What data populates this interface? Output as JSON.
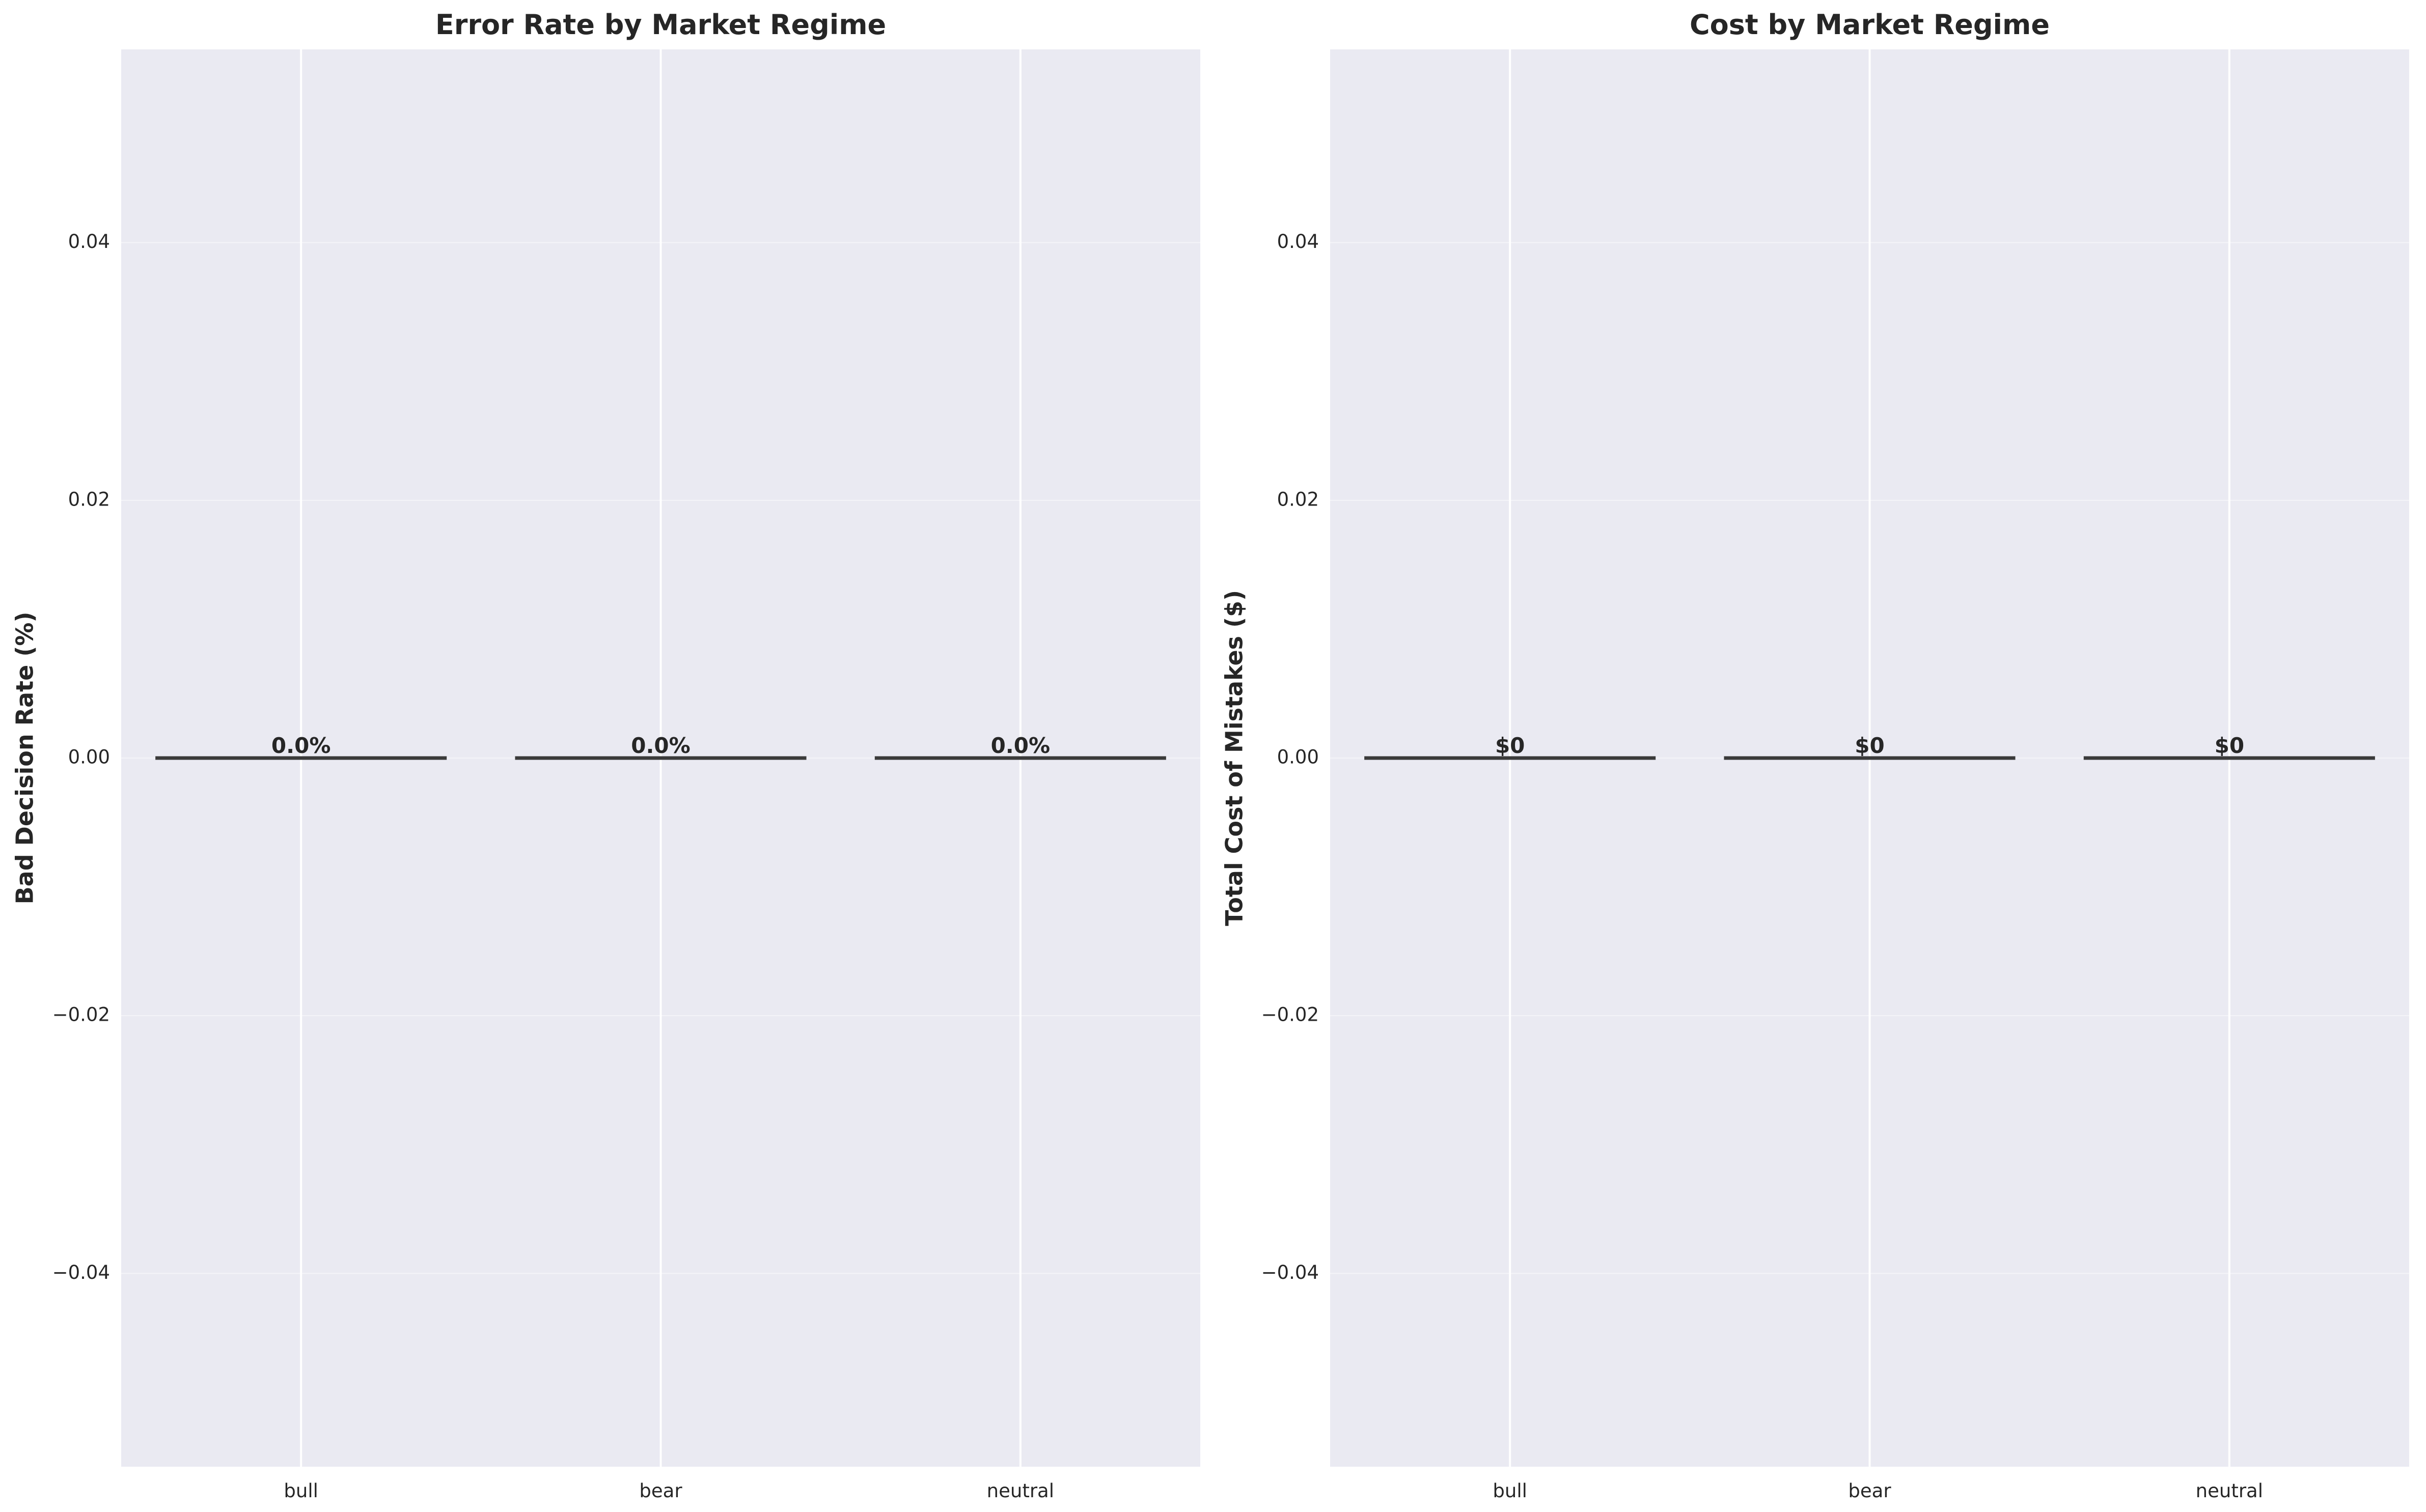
{
  "chart_data": [
    {
      "type": "bar",
      "title": "Error Rate by Market Regime",
      "xlabel": "",
      "ylabel": "Bad Decision Rate (%)",
      "categories": [
        "bull",
        "bear",
        "neutral"
      ],
      "values": [
        0.0,
        0.0,
        0.0
      ],
      "value_labels": [
        "0.0%",
        "0.0%",
        "0.0%"
      ],
      "ylim": [
        -0.055,
        0.055
      ],
      "yticks": [
        -0.04,
        -0.02,
        0.0,
        0.02,
        0.04
      ],
      "ytick_labels": [
        "−0.04",
        "−0.02",
        "0.00",
        "0.02",
        "0.04"
      ],
      "grid": true,
      "background": "#eaeaf2",
      "bar_edge_color": "#3a3a3a"
    },
    {
      "type": "bar",
      "title": "Cost by Market Regime",
      "xlabel": "",
      "ylabel": "Total Cost of Mistakes ($)",
      "categories": [
        "bull",
        "bear",
        "neutral"
      ],
      "values": [
        0,
        0,
        0
      ],
      "value_labels": [
        "$0",
        "$0",
        "$0"
      ],
      "ylim": [
        -0.055,
        0.055
      ],
      "yticks": [
        -0.04,
        -0.02,
        0.0,
        0.02,
        0.04
      ],
      "ytick_labels": [
        "−0.04",
        "−0.02",
        "0.00",
        "0.02",
        "0.04"
      ],
      "grid": true,
      "background": "#eaeaf2",
      "bar_edge_color": "#3a3a3a"
    }
  ]
}
